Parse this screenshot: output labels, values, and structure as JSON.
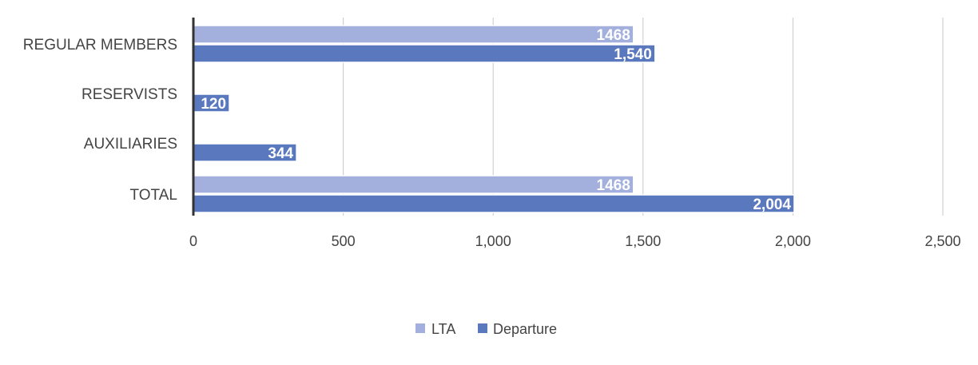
{
  "chart_data": {
    "type": "bar",
    "orientation": "horizontal",
    "title": "",
    "xlabel": "",
    "ylabel": "",
    "categories": [
      "REGULAR MEMBERS",
      "RESERVISTS",
      "AUXILIARIES",
      "TOTAL"
    ],
    "series": [
      {
        "name": "LTA",
        "color": "#a3b0de",
        "values": [
          1468,
          null,
          null,
          1468
        ],
        "labels": [
          "1468",
          "",
          "",
          "1468"
        ]
      },
      {
        "name": "Departure",
        "color": "#5a78bd",
        "values": [
          1540,
          120,
          344,
          2004
        ],
        "labels": [
          "1,540",
          "120",
          "344",
          "2,004"
        ]
      }
    ],
    "xlim": [
      0,
      2500
    ],
    "xticks": [
      0,
      500,
      1000,
      1500,
      2000,
      2500
    ],
    "xtick_labels": [
      "0",
      "500",
      "1,000",
      "1,500",
      "2,000",
      "2,500"
    ],
    "grid": true,
    "legend_position": "bottom"
  }
}
